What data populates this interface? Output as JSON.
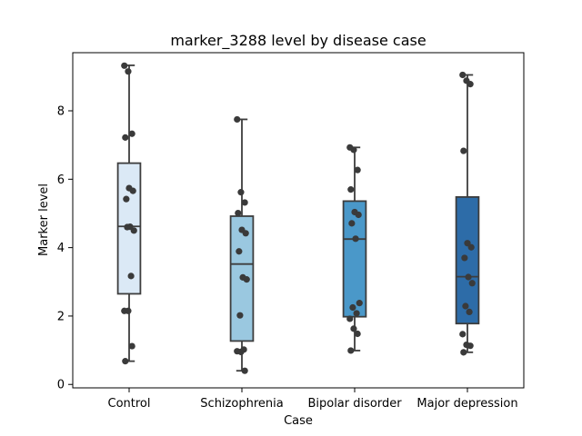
{
  "chart_data": {
    "type": "box",
    "title": "marker_3288 level by disease case",
    "xlabel": "Case",
    "ylabel": "Marker level",
    "ylim": [
      -0.1,
      9.7
    ],
    "yticks": [
      0,
      2,
      4,
      6,
      8
    ],
    "categories": [
      "Control",
      "Schizophrenia",
      "Bipolar disorder",
      "Major depression"
    ],
    "box_colors": [
      "#dbe9f6",
      "#9ac8e0",
      "#4a98c9",
      "#2d6ca8"
    ],
    "boxes": [
      {
        "category": "Control",
        "whisker_low": 0.68,
        "q1": 2.65,
        "median": 4.62,
        "q3": 6.47,
        "whisker_high": 9.33
      },
      {
        "category": "Schizophrenia",
        "whisker_low": 0.4,
        "q1": 1.27,
        "median": 3.52,
        "q3": 4.92,
        "whisker_high": 7.75
      },
      {
        "category": "Bipolar disorder",
        "whisker_low": 0.99,
        "q1": 1.98,
        "median": 4.25,
        "q3": 5.36,
        "whisker_high": 6.93
      },
      {
        "category": "Major depression",
        "whisker_low": 0.94,
        "q1": 1.78,
        "median": 3.15,
        "q3": 5.48,
        "whisker_high": 9.05
      }
    ],
    "points": [
      {
        "category": "Control",
        "values": [
          9.32,
          9.15,
          7.33,
          7.22,
          5.74,
          5.66,
          5.42,
          4.61,
          4.5,
          4.6,
          3.17,
          2.15,
          2.15,
          1.12,
          0.68
        ]
      },
      {
        "category": "Schizophrenia",
        "values": [
          7.75,
          5.62,
          5.32,
          5.01,
          4.52,
          4.42,
          3.89,
          3.13,
          3.07,
          2.02,
          1.02,
          0.97,
          0.95,
          0.4
        ]
      },
      {
        "category": "Bipolar disorder",
        "values": [
          6.93,
          6.86,
          6.27,
          5.7,
          5.04,
          4.96,
          4.71,
          4.26,
          2.38,
          2.25,
          2.08,
          1.92,
          1.63,
          1.48,
          0.99
        ]
      },
      {
        "category": "Major depression",
        "values": [
          9.05,
          8.88,
          8.78,
          6.83,
          4.13,
          4.01,
          3.7,
          3.14,
          2.96,
          2.29,
          2.12,
          1.47,
          1.16,
          1.13,
          0.94
        ]
      }
    ],
    "point_color": "#3a3a3a",
    "line_color": "#3d3d3d",
    "grid": false,
    "legend": "none"
  }
}
